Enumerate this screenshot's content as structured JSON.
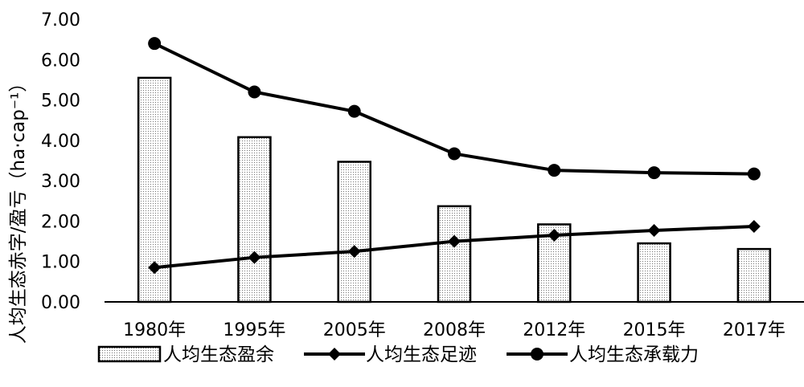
{
  "chart_data": {
    "type": "bar",
    "categories": [
      "1980年",
      "1995年",
      "2005年",
      "2008年",
      "2012年",
      "2015年",
      "2017年"
    ],
    "series": [
      {
        "name": "人均生态盈余",
        "kind": "bar",
        "values": [
          5.55,
          4.08,
          3.47,
          2.37,
          1.92,
          1.45,
          1.31
        ]
      },
      {
        "name": "人均生态足迹",
        "kind": "line",
        "marker": "diamond",
        "values": [
          0.85,
          1.1,
          1.25,
          1.5,
          1.65,
          1.77,
          1.87
        ]
      },
      {
        "name": "人均生态承载力",
        "kind": "line",
        "marker": "circle",
        "values": [
          6.4,
          5.2,
          4.72,
          3.67,
          3.26,
          3.2,
          3.17
        ]
      }
    ],
    "ylabel": "人均生态赤字/盈亏（ha·cap⁻¹）",
    "ylim": [
      0,
      7
    ],
    "yticks": [
      "0.00",
      "1.00",
      "2.00",
      "3.00",
      "4.00",
      "5.00",
      "6.00",
      "7.00"
    ],
    "grid": false,
    "legend_position": "bottom"
  }
}
